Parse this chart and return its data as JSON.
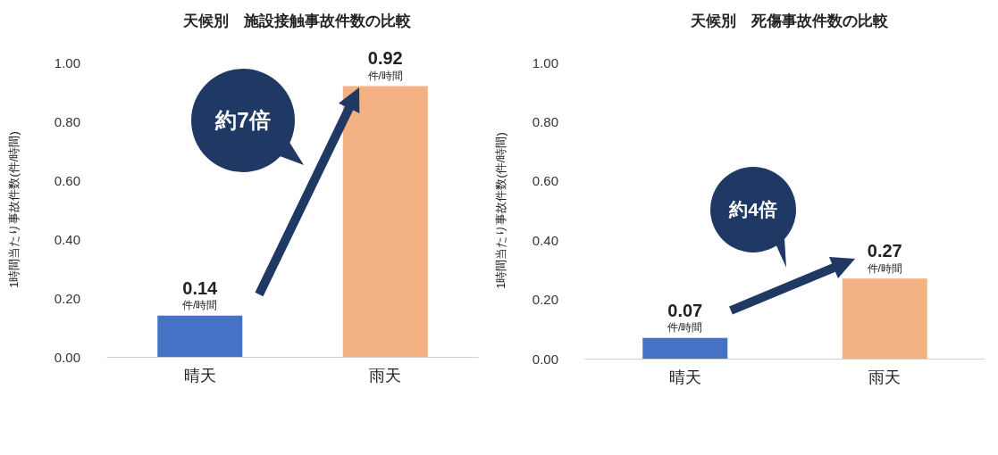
{
  "chart_data": [
    {
      "type": "bar",
      "title": "天候別　施設接触事故件数の比較",
      "ylabel": "1時間当たり事故件数(件/時間)",
      "categories": [
        "晴天",
        "雨天"
      ],
      "values": [
        0.14,
        0.92
      ],
      "colors": [
        "#4472c4",
        "#f4b183"
      ],
      "value_labels": [
        "0.14\n件/時間",
        "0.92\n件/時間"
      ],
      "ylim": [
        0,
        1
      ],
      "yticks": [
        {
          "value": 0,
          "label": "0.00"
        },
        {
          "value": 0.2,
          "label": "0.20"
        },
        {
          "value": 0.4,
          "label": "0.40"
        },
        {
          "value": 0.6,
          "label": "0.60"
        },
        {
          "value": 0.8,
          "label": "0.80"
        },
        {
          "value": 1,
          "label": "1.00"
        }
      ],
      "grid": false,
      "annotations": [
        "約7倍"
      ]
    },
    {
      "type": "bar",
      "title": "天候別　死傷事故件数の比較",
      "ylabel": "1時間当たり事故件数(件/時間)",
      "categories": [
        "晴天",
        "雨天"
      ],
      "values": [
        0.07,
        0.27
      ],
      "colors": [
        "#4472c4",
        "#f4b183"
      ],
      "value_labels": [
        "0.07\n件/時間",
        "0.27\n件/時間"
      ],
      "ylim": [
        0,
        1
      ],
      "yticks": [
        {
          "value": 0,
          "label": "0.00"
        },
        {
          "value": 0.2,
          "label": "0.20"
        },
        {
          "value": 0.4,
          "label": "0.40"
        },
        {
          "value": 0.6,
          "label": "0.60"
        },
        {
          "value": 0.8,
          "label": "0.80"
        },
        {
          "value": 1,
          "label": "1.00"
        }
      ],
      "grid": false,
      "annotations": [
        "約4倍"
      ]
    }
  ]
}
